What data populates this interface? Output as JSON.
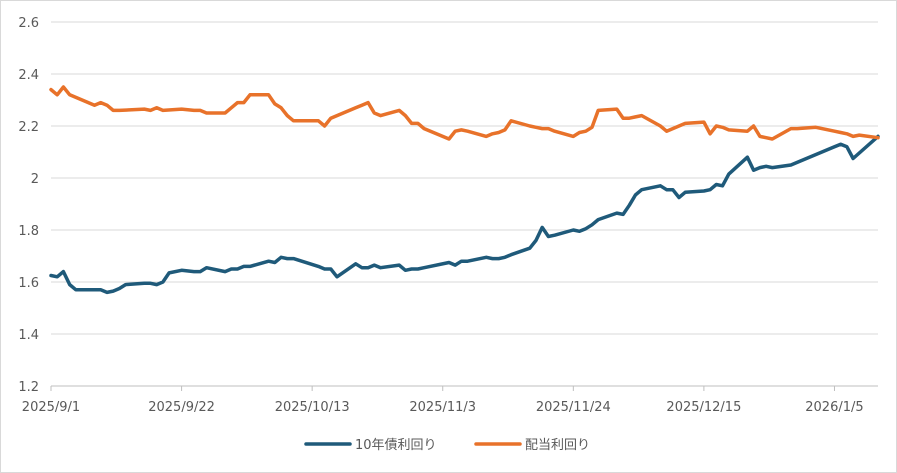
{
  "chart_data": {
    "type": "line",
    "title": "",
    "xlabel": "",
    "ylabel": "",
    "ylim": [
      1.2,
      2.6
    ],
    "yticks": [
      "1.2",
      "1.4",
      "1.6",
      "1.8",
      "2",
      "2.2",
      "2.4",
      "2.6"
    ],
    "xlim": [
      "2025-09-01",
      "2026-01-12"
    ],
    "xticks": [
      {
        "date": "2025-09-01",
        "label": "2025/9/1"
      },
      {
        "date": "2025-09-22",
        "label": "2025/9/22"
      },
      {
        "date": "2025-10-13",
        "label": "2025/10/13"
      },
      {
        "date": "2025-11-03",
        "label": "2025/11/3"
      },
      {
        "date": "2025-11-24",
        "label": "2025/11/24"
      },
      {
        "date": "2025-12-15",
        "label": "2025/12/15"
      },
      {
        "date": "2026-01-05",
        "label": "2026/1/5"
      }
    ],
    "grid": "horizontal",
    "legend": "bottom",
    "series": [
      {
        "name": "10年債利回り",
        "color": "#1f5a7a",
        "points": [
          [
            "2025-09-01",
            1.625
          ],
          [
            "2025-09-02",
            1.62
          ],
          [
            "2025-09-03",
            1.64
          ],
          [
            "2025-09-04",
            1.59
          ],
          [
            "2025-09-05",
            1.57
          ],
          [
            "2025-09-08",
            1.57
          ],
          [
            "2025-09-09",
            1.57
          ],
          [
            "2025-09-10",
            1.56
          ],
          [
            "2025-09-11",
            1.565
          ],
          [
            "2025-09-12",
            1.575
          ],
          [
            "2025-09-13",
            1.59
          ],
          [
            "2025-09-16",
            1.595
          ],
          [
            "2025-09-17",
            1.595
          ],
          [
            "2025-09-18",
            1.59
          ],
          [
            "2025-09-19",
            1.6
          ],
          [
            "2025-09-20",
            1.635
          ],
          [
            "2025-09-22",
            1.645
          ],
          [
            "2025-09-24",
            1.64
          ],
          [
            "2025-09-25",
            1.64
          ],
          [
            "2025-09-26",
            1.655
          ],
          [
            "2025-09-29",
            1.64
          ],
          [
            "2025-09-30",
            1.65
          ],
          [
            "2025-10-01",
            1.65
          ],
          [
            "2025-10-02",
            1.66
          ],
          [
            "2025-10-03",
            1.66
          ],
          [
            "2025-10-06",
            1.68
          ],
          [
            "2025-10-07",
            1.675
          ],
          [
            "2025-10-08",
            1.695
          ],
          [
            "2025-10-09",
            1.69
          ],
          [
            "2025-10-10",
            1.69
          ],
          [
            "2025-10-14",
            1.66
          ],
          [
            "2025-10-15",
            1.65
          ],
          [
            "2025-10-16",
            1.65
          ],
          [
            "2025-10-17",
            1.62
          ],
          [
            "2025-10-20",
            1.67
          ],
          [
            "2025-10-21",
            1.655
          ],
          [
            "2025-10-22",
            1.655
          ],
          [
            "2025-10-23",
            1.665
          ],
          [
            "2025-10-24",
            1.655
          ],
          [
            "2025-10-27",
            1.665
          ],
          [
            "2025-10-28",
            1.645
          ],
          [
            "2025-10-29",
            1.65
          ],
          [
            "2025-10-30",
            1.65
          ],
          [
            "2025-10-31",
            1.655
          ],
          [
            "2025-11-04",
            1.675
          ],
          [
            "2025-11-05",
            1.665
          ],
          [
            "2025-11-06",
            1.68
          ],
          [
            "2025-11-07",
            1.68
          ],
          [
            "2025-11-10",
            1.695
          ],
          [
            "2025-11-11",
            1.69
          ],
          [
            "2025-11-12",
            1.69
          ],
          [
            "2025-11-13",
            1.695
          ],
          [
            "2025-11-14",
            1.705
          ],
          [
            "2025-11-17",
            1.73
          ],
          [
            "2025-11-18",
            1.76
          ],
          [
            "2025-11-19",
            1.81
          ],
          [
            "2025-11-20",
            1.775
          ],
          [
            "2025-11-21",
            1.78
          ],
          [
            "2025-11-24",
            1.8
          ],
          [
            "2025-11-25",
            1.795
          ],
          [
            "2025-11-26",
            1.805
          ],
          [
            "2025-11-27",
            1.82
          ],
          [
            "2025-11-28",
            1.84
          ],
          [
            "2025-12-01",
            1.865
          ],
          [
            "2025-12-02",
            1.86
          ],
          [
            "2025-12-03",
            1.895
          ],
          [
            "2025-12-04",
            1.935
          ],
          [
            "2025-12-05",
            1.955
          ],
          [
            "2025-12-08",
            1.97
          ],
          [
            "2025-12-09",
            1.955
          ],
          [
            "2025-12-10",
            1.955
          ],
          [
            "2025-12-11",
            1.925
          ],
          [
            "2025-12-12",
            1.945
          ],
          [
            "2025-12-15",
            1.95
          ],
          [
            "2025-12-16",
            1.955
          ],
          [
            "2025-12-17",
            1.975
          ],
          [
            "2025-12-18",
            1.97
          ],
          [
            "2025-12-19",
            2.015
          ],
          [
            "2025-12-22",
            2.08
          ],
          [
            "2025-12-23",
            2.03
          ],
          [
            "2025-12-24",
            2.04
          ],
          [
            "2025-12-25",
            2.045
          ],
          [
            "2025-12-26",
            2.04
          ],
          [
            "2025-12-29",
            2.05
          ],
          [
            "2026-01-05",
            2.12
          ],
          [
            "2026-01-06",
            2.13
          ],
          [
            "2026-01-07",
            2.12
          ],
          [
            "2026-01-08",
            2.075
          ],
          [
            "2026-01-12",
            2.16
          ]
        ]
      },
      {
        "name": "配当利回り",
        "color": "#e8722a",
        "points": [
          [
            "2025-09-01",
            2.34
          ],
          [
            "2025-09-02",
            2.32
          ],
          [
            "2025-09-03",
            2.35
          ],
          [
            "2025-09-04",
            2.32
          ],
          [
            "2025-09-08",
            2.28
          ],
          [
            "2025-09-09",
            2.29
          ],
          [
            "2025-09-10",
            2.28
          ],
          [
            "2025-09-11",
            2.26
          ],
          [
            "2025-09-12",
            2.26
          ],
          [
            "2025-09-16",
            2.265
          ],
          [
            "2025-09-17",
            2.26
          ],
          [
            "2025-09-18",
            2.27
          ],
          [
            "2025-09-19",
            2.26
          ],
          [
            "2025-09-22",
            2.265
          ],
          [
            "2025-09-24",
            2.26
          ],
          [
            "2025-09-25",
            2.26
          ],
          [
            "2025-09-26",
            2.25
          ],
          [
            "2025-09-29",
            2.25
          ],
          [
            "2025-09-30",
            2.27
          ],
          [
            "2025-10-01",
            2.29
          ],
          [
            "2025-10-02",
            2.29
          ],
          [
            "2025-10-03",
            2.32
          ],
          [
            "2025-10-06",
            2.32
          ],
          [
            "2025-10-07",
            2.285
          ],
          [
            "2025-10-08",
            2.27
          ],
          [
            "2025-10-09",
            2.24
          ],
          [
            "2025-10-10",
            2.22
          ],
          [
            "2025-10-14",
            2.22
          ],
          [
            "2025-10-15",
            2.2
          ],
          [
            "2025-10-16",
            2.23
          ],
          [
            "2025-10-17",
            2.24
          ],
          [
            "2025-10-20",
            2.27
          ],
          [
            "2025-10-21",
            2.28
          ],
          [
            "2025-10-22",
            2.29
          ],
          [
            "2025-10-23",
            2.25
          ],
          [
            "2025-10-24",
            2.24
          ],
          [
            "2025-10-27",
            2.26
          ],
          [
            "2025-10-28",
            2.24
          ],
          [
            "2025-10-29",
            2.21
          ],
          [
            "2025-10-30",
            2.21
          ],
          [
            "2025-10-31",
            2.19
          ],
          [
            "2025-11-04",
            2.15
          ],
          [
            "2025-11-05",
            2.18
          ],
          [
            "2025-11-06",
            2.185
          ],
          [
            "2025-11-07",
            2.18
          ],
          [
            "2025-11-10",
            2.16
          ],
          [
            "2025-11-11",
            2.17
          ],
          [
            "2025-11-12",
            2.175
          ],
          [
            "2025-11-13",
            2.185
          ],
          [
            "2025-11-14",
            2.22
          ],
          [
            "2025-11-17",
            2.2
          ],
          [
            "2025-11-18",
            2.195
          ],
          [
            "2025-11-19",
            2.19
          ],
          [
            "2025-11-20",
            2.19
          ],
          [
            "2025-11-21",
            2.18
          ],
          [
            "2025-11-24",
            2.16
          ],
          [
            "2025-11-25",
            2.175
          ],
          [
            "2025-11-26",
            2.18
          ],
          [
            "2025-11-27",
            2.195
          ],
          [
            "2025-11-28",
            2.26
          ],
          [
            "2025-12-01",
            2.265
          ],
          [
            "2025-12-02",
            2.23
          ],
          [
            "2025-12-03",
            2.23
          ],
          [
            "2025-12-04",
            2.235
          ],
          [
            "2025-12-05",
            2.24
          ],
          [
            "2025-12-08",
            2.2
          ],
          [
            "2025-12-09",
            2.18
          ],
          [
            "2025-12-10",
            2.19
          ],
          [
            "2025-12-11",
            2.2
          ],
          [
            "2025-12-12",
            2.21
          ],
          [
            "2025-12-15",
            2.215
          ],
          [
            "2025-12-16",
            2.17
          ],
          [
            "2025-12-17",
            2.2
          ],
          [
            "2025-12-18",
            2.195
          ],
          [
            "2025-12-19",
            2.185
          ],
          [
            "2025-12-22",
            2.18
          ],
          [
            "2025-12-23",
            2.2
          ],
          [
            "2025-12-24",
            2.16
          ],
          [
            "2025-12-25",
            2.155
          ],
          [
            "2025-12-26",
            2.15
          ],
          [
            "2025-12-29",
            2.19
          ],
          [
            "2025-12-30",
            2.19
          ],
          [
            "2026-01-02",
            2.195
          ],
          [
            "2026-01-05",
            2.18
          ],
          [
            "2026-01-06",
            2.175
          ],
          [
            "2026-01-07",
            2.17
          ],
          [
            "2026-01-08",
            2.16
          ],
          [
            "2026-01-09",
            2.165
          ],
          [
            "2026-01-12",
            2.155
          ]
        ]
      }
    ]
  }
}
